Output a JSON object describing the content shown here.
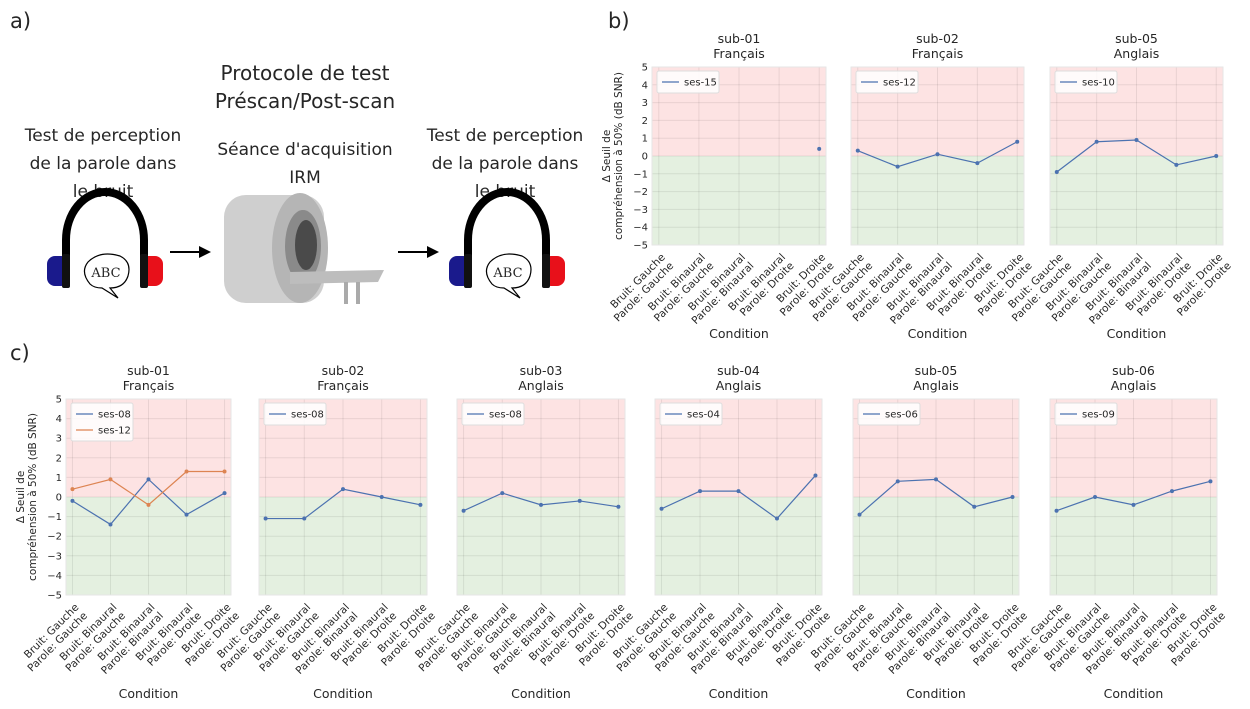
{
  "panel_labels": [
    "a)",
    "b)",
    "c)"
  ],
  "diagram": {
    "title": [
      "Protocole de test",
      "Préscan/Post-scan"
    ],
    "left": [
      "Test de perception",
      "de la parole dans",
      "le bruit"
    ],
    "center": [
      "Séance d'acquisition",
      "IRM"
    ],
    "right": [
      "Test de perception",
      "de la parole dans",
      "le bruit"
    ],
    "bubble": "ABC"
  },
  "chart_data": [
    {
      "type": "line",
      "title": "sub-01",
      "subtitle": "Français",
      "xlabel": "Condition",
      "ylabel": [
        "Δ Seuil de",
        "compréhension à 50% (dB SNR)"
      ],
      "ytick_labels": true,
      "categories": [
        [
          "Bruit: Gauche",
          "Parole: Gauche"
        ],
        [
          "Bruit: Binaural",
          "Parole: Gauche"
        ],
        [
          "Bruit: Binaural",
          "Parole: Binaural"
        ],
        [
          "Bruit: Binaural",
          "Parole: Droite"
        ],
        [
          "Bruit: Droite",
          "Parole: Droite"
        ]
      ],
      "series": [
        {
          "name": "ses-15",
          "color": "#4c72b0",
          "values": [
            null,
            null,
            null,
            null,
            0.4
          ]
        }
      ],
      "ylim": [
        -5,
        5
      ],
      "yticks": [
        {
          "value": -5,
          "label": "−5"
        },
        {
          "value": -4,
          "label": "−4"
        },
        {
          "value": -3,
          "label": "−3"
        },
        {
          "value": -2,
          "label": "−2"
        },
        {
          "value": -1,
          "label": "−1"
        },
        0,
        1,
        2,
        3,
        4,
        5
      ],
      "grid": true,
      "legend": "upper left",
      "threshold": 0,
      "above_color": "#fde3e3",
      "below_color": "#e4f0e0"
    },
    {
      "type": "line",
      "title": "sub-02",
      "subtitle": "Français",
      "xlabel": "Condition",
      "ytick_labels": false,
      "categories": [
        [
          "Bruit: Gauche",
          "Parole: Gauche"
        ],
        [
          "Bruit: Binaural",
          "Parole: Gauche"
        ],
        [
          "Bruit: Binaural",
          "Parole: Binaural"
        ],
        [
          "Bruit: Binaural",
          "Parole: Droite"
        ],
        [
          "Bruit: Droite",
          "Parole: Droite"
        ]
      ],
      "series": [
        {
          "name": "ses-12",
          "color": "#4c72b0",
          "values": [
            0.3,
            -0.6,
            0.1,
            -0.4,
            0.8
          ]
        }
      ],
      "ylim": [
        -5,
        5
      ],
      "yticks": [
        {
          "value": -5,
          "label": "−5"
        },
        {
          "value": -4,
          "label": "−4"
        },
        {
          "value": -3,
          "label": "−3"
        },
        {
          "value": -2,
          "label": "−2"
        },
        {
          "value": -1,
          "label": "−1"
        },
        0,
        1,
        2,
        3,
        4,
        5
      ],
      "grid": true,
      "legend": "upper left",
      "threshold": 0,
      "above_color": "#fde3e3",
      "below_color": "#e4f0e0"
    },
    {
      "type": "line",
      "title": "sub-05",
      "subtitle": "Anglais",
      "xlabel": "Condition",
      "ytick_labels": false,
      "categories": [
        [
          "Bruit: Gauche",
          "Parole: Gauche"
        ],
        [
          "Bruit: Binaural",
          "Parole: Gauche"
        ],
        [
          "Bruit: Binaural",
          "Parole: Binaural"
        ],
        [
          "Bruit: Binaural",
          "Parole: Droite"
        ],
        [
          "Bruit: Droite",
          "Parole: Droite"
        ]
      ],
      "series": [
        {
          "name": "ses-10",
          "color": "#4c72b0",
          "values": [
            -0.9,
            0.8,
            0.9,
            -0.5,
            0.0
          ]
        }
      ],
      "ylim": [
        -5,
        5
      ],
      "yticks": [
        {
          "value": -5,
          "label": "−5"
        },
        {
          "value": -4,
          "label": "−4"
        },
        {
          "value": -3,
          "label": "−3"
        },
        {
          "value": -2,
          "label": "−2"
        },
        {
          "value": -1,
          "label": "−1"
        },
        0,
        1,
        2,
        3,
        4,
        5
      ],
      "grid": true,
      "legend": "upper left",
      "threshold": 0,
      "above_color": "#fde3e3",
      "below_color": "#e4f0e0"
    },
    {
      "type": "line",
      "title": "sub-01",
      "subtitle": "Français",
      "xlabel": "Condition",
      "ylabel": [
        "Δ Seuil de",
        "compréhension à 50% (dB SNR)"
      ],
      "ytick_labels": true,
      "categories": [
        [
          "Bruit: Gauche",
          "Parole: Gauche"
        ],
        [
          "Bruit: Binaural",
          "Parole: Gauche"
        ],
        [
          "Bruit: Binaural",
          "Parole: Binaural"
        ],
        [
          "Bruit: Binaural",
          "Parole: Droite"
        ],
        [
          "Bruit: Droite",
          "Parole: Droite"
        ]
      ],
      "series": [
        {
          "name": "ses-08",
          "color": "#4c72b0",
          "values": [
            -0.2,
            -1.4,
            0.9,
            -0.9,
            0.2
          ]
        },
        {
          "name": "ses-12",
          "color": "#dd8452",
          "values": [
            0.4,
            0.9,
            -0.4,
            1.3,
            1.3
          ]
        }
      ],
      "ylim": [
        -5,
        5
      ],
      "yticks": [
        {
          "value": -5,
          "label": "−5"
        },
        {
          "value": -4,
          "label": "−4"
        },
        {
          "value": -3,
          "label": "−3"
        },
        {
          "value": -2,
          "label": "−2"
        },
        {
          "value": -1,
          "label": "−1"
        },
        0,
        1,
        2,
        3,
        4,
        5
      ],
      "grid": true,
      "legend": "upper left",
      "threshold": 0,
      "above_color": "#fde3e3",
      "below_color": "#e4f0e0"
    },
    {
      "type": "line",
      "title": "sub-02",
      "subtitle": "Français",
      "xlabel": "Condition",
      "ytick_labels": false,
      "categories": [
        [
          "Bruit: Gauche",
          "Parole: Gauche"
        ],
        [
          "Bruit: Binaural",
          "Parole: Gauche"
        ],
        [
          "Bruit: Binaural",
          "Parole: Binaural"
        ],
        [
          "Bruit: Binaural",
          "Parole: Droite"
        ],
        [
          "Bruit: Droite",
          "Parole: Droite"
        ]
      ],
      "series": [
        {
          "name": "ses-08",
          "color": "#4c72b0",
          "values": [
            -1.1,
            -1.1,
            0.4,
            0.0,
            -0.4
          ]
        }
      ],
      "ylim": [
        -5,
        5
      ],
      "yticks": [
        {
          "value": -5,
          "label": "−5"
        },
        {
          "value": -4,
          "label": "−4"
        },
        {
          "value": -3,
          "label": "−3"
        },
        {
          "value": -2,
          "label": "−2"
        },
        {
          "value": -1,
          "label": "−1"
        },
        0,
        1,
        2,
        3,
        4,
        5
      ],
      "grid": true,
      "legend": "upper left",
      "threshold": 0,
      "above_color": "#fde3e3",
      "below_color": "#e4f0e0"
    },
    {
      "type": "line",
      "title": "sub-03",
      "subtitle": "Anglais",
      "xlabel": "Condition",
      "ytick_labels": false,
      "categories": [
        [
          "Bruit: Gauche",
          "Parole: Gauche"
        ],
        [
          "Bruit: Binaural",
          "Parole: Gauche"
        ],
        [
          "Bruit: Binaural",
          "Parole: Binaural"
        ],
        [
          "Bruit: Binaural",
          "Parole: Droite"
        ],
        [
          "Bruit: Droite",
          "Parole: Droite"
        ]
      ],
      "series": [
        {
          "name": "ses-08",
          "color": "#4c72b0",
          "values": [
            -0.7,
            0.2,
            -0.4,
            -0.2,
            -0.5
          ]
        }
      ],
      "ylim": [
        -5,
        5
      ],
      "yticks": [
        {
          "value": -5,
          "label": "−5"
        },
        {
          "value": -4,
          "label": "−4"
        },
        {
          "value": -3,
          "label": "−3"
        },
        {
          "value": -2,
          "label": "−2"
        },
        {
          "value": -1,
          "label": "−1"
        },
        0,
        1,
        2,
        3,
        4,
        5
      ],
      "grid": true,
      "legend": "upper left",
      "threshold": 0,
      "above_color": "#fde3e3",
      "below_color": "#e4f0e0"
    },
    {
      "type": "line",
      "title": "sub-04",
      "subtitle": "Anglais",
      "xlabel": "Condition",
      "ytick_labels": false,
      "categories": [
        [
          "Bruit: Gauche",
          "Parole: Gauche"
        ],
        [
          "Bruit: Binaural",
          "Parole: Gauche"
        ],
        [
          "Bruit: Binaural",
          "Parole: Binaural"
        ],
        [
          "Bruit: Binaural",
          "Parole: Droite"
        ],
        [
          "Bruit: Droite",
          "Parole: Droite"
        ]
      ],
      "series": [
        {
          "name": "ses-04",
          "color": "#4c72b0",
          "values": [
            -0.6,
            0.3,
            0.3,
            -1.1,
            1.1
          ]
        }
      ],
      "ylim": [
        -5,
        5
      ],
      "yticks": [
        {
          "value": -5,
          "label": "−5"
        },
        {
          "value": -4,
          "label": "−4"
        },
        {
          "value": -3,
          "label": "−3"
        },
        {
          "value": -2,
          "label": "−2"
        },
        {
          "value": -1,
          "label": "−1"
        },
        0,
        1,
        2,
        3,
        4,
        5
      ],
      "grid": true,
      "legend": "upper left",
      "threshold": 0,
      "above_color": "#fde3e3",
      "below_color": "#e4f0e0"
    },
    {
      "type": "line",
      "title": "sub-05",
      "subtitle": "Anglais",
      "xlabel": "Condition",
      "ytick_labels": false,
      "categories": [
        [
          "Bruit: Gauche",
          "Parole: Gauche"
        ],
        [
          "Bruit: Binaural",
          "Parole: Gauche"
        ],
        [
          "Bruit: Binaural",
          "Parole: Binaural"
        ],
        [
          "Bruit: Binaural",
          "Parole: Droite"
        ],
        [
          "Bruit: Droite",
          "Parole: Droite"
        ]
      ],
      "series": [
        {
          "name": "ses-06",
          "color": "#4c72b0",
          "values": [
            -0.9,
            0.8,
            0.9,
            -0.5,
            0.0
          ]
        }
      ],
      "ylim": [
        -5,
        5
      ],
      "yticks": [
        {
          "value": -5,
          "label": "−5"
        },
        {
          "value": -4,
          "label": "−4"
        },
        {
          "value": -3,
          "label": "−3"
        },
        {
          "value": -2,
          "label": "−2"
        },
        {
          "value": -1,
          "label": "−1"
        },
        0,
        1,
        2,
        3,
        4,
        5
      ],
      "grid": true,
      "legend": "upper left",
      "threshold": 0,
      "above_color": "#fde3e3",
      "below_color": "#e4f0e0"
    },
    {
      "type": "line",
      "title": "sub-06",
      "subtitle": "Anglais",
      "xlabel": "Condition",
      "ytick_labels": false,
      "categories": [
        [
          "Bruit: Gauche",
          "Parole: Gauche"
        ],
        [
          "Bruit: Binaural",
          "Parole: Gauche"
        ],
        [
          "Bruit: Binaural",
          "Parole: Binaural"
        ],
        [
          "Bruit: Binaural",
          "Parole: Droite"
        ],
        [
          "Bruit: Droite",
          "Parole: Droite"
        ]
      ],
      "series": [
        {
          "name": "ses-09",
          "color": "#4c72b0",
          "values": [
            -0.7,
            0.0,
            -0.4,
            0.3,
            0.8
          ]
        }
      ],
      "ylim": [
        -5,
        5
      ],
      "yticks": [
        {
          "value": -5,
          "label": "−5"
        },
        {
          "value": -4,
          "label": "−4"
        },
        {
          "value": -3,
          "label": "−3"
        },
        {
          "value": -2,
          "label": "−2"
        },
        {
          "value": -1,
          "label": "−1"
        },
        0,
        1,
        2,
        3,
        4,
        5
      ],
      "grid": true,
      "legend": "upper left",
      "threshold": 0,
      "above_color": "#fde3e3",
      "below_color": "#e4f0e0"
    }
  ]
}
